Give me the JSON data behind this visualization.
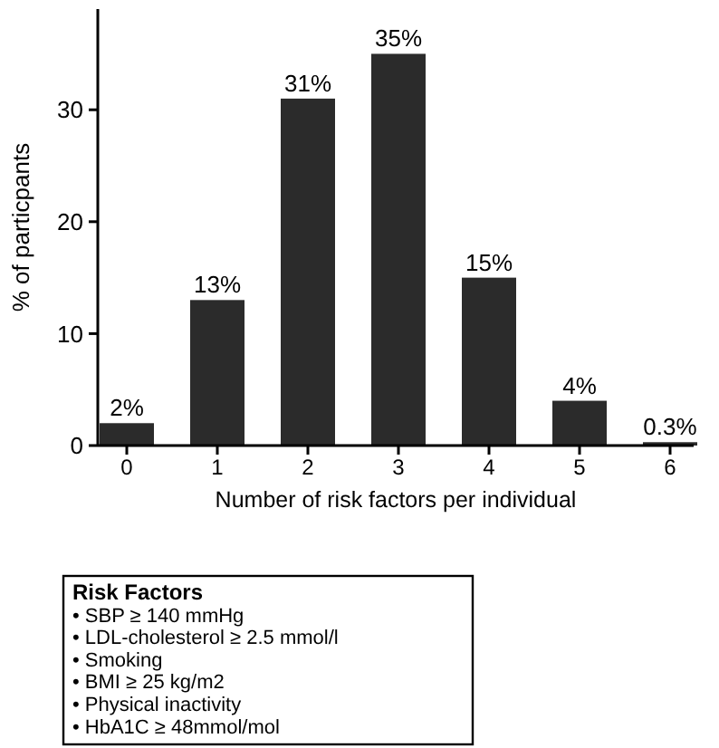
{
  "chart_data": {
    "type": "bar",
    "xlabel": "Number of risk factors per individual",
    "ylabel": "% of particpants",
    "categories": [
      "0",
      "1",
      "2",
      "3",
      "4",
      "5",
      "6"
    ],
    "values": [
      2,
      13,
      31,
      35,
      15,
      4,
      0.3
    ],
    "value_labels": [
      "2%",
      "13%",
      "31%",
      "35%",
      "15%",
      "4%",
      "0.3%"
    ],
    "color": "#2b2b2b",
    "ylim": [
      0,
      39
    ],
    "yticks": [
      0,
      10,
      20,
      30
    ],
    "grid": false,
    "annotations": [
      "Risk Factors",
      "• SBP ≥ 140 mmHg",
      "• LDL-cholesterol ≥ 2.5 mmol/l",
      "• Smoking",
      "• BMI ≥ 25 kg/m2",
      "• Physical inactivity",
      "• HbA1C ≥ 48mmol/mol"
    ]
  }
}
